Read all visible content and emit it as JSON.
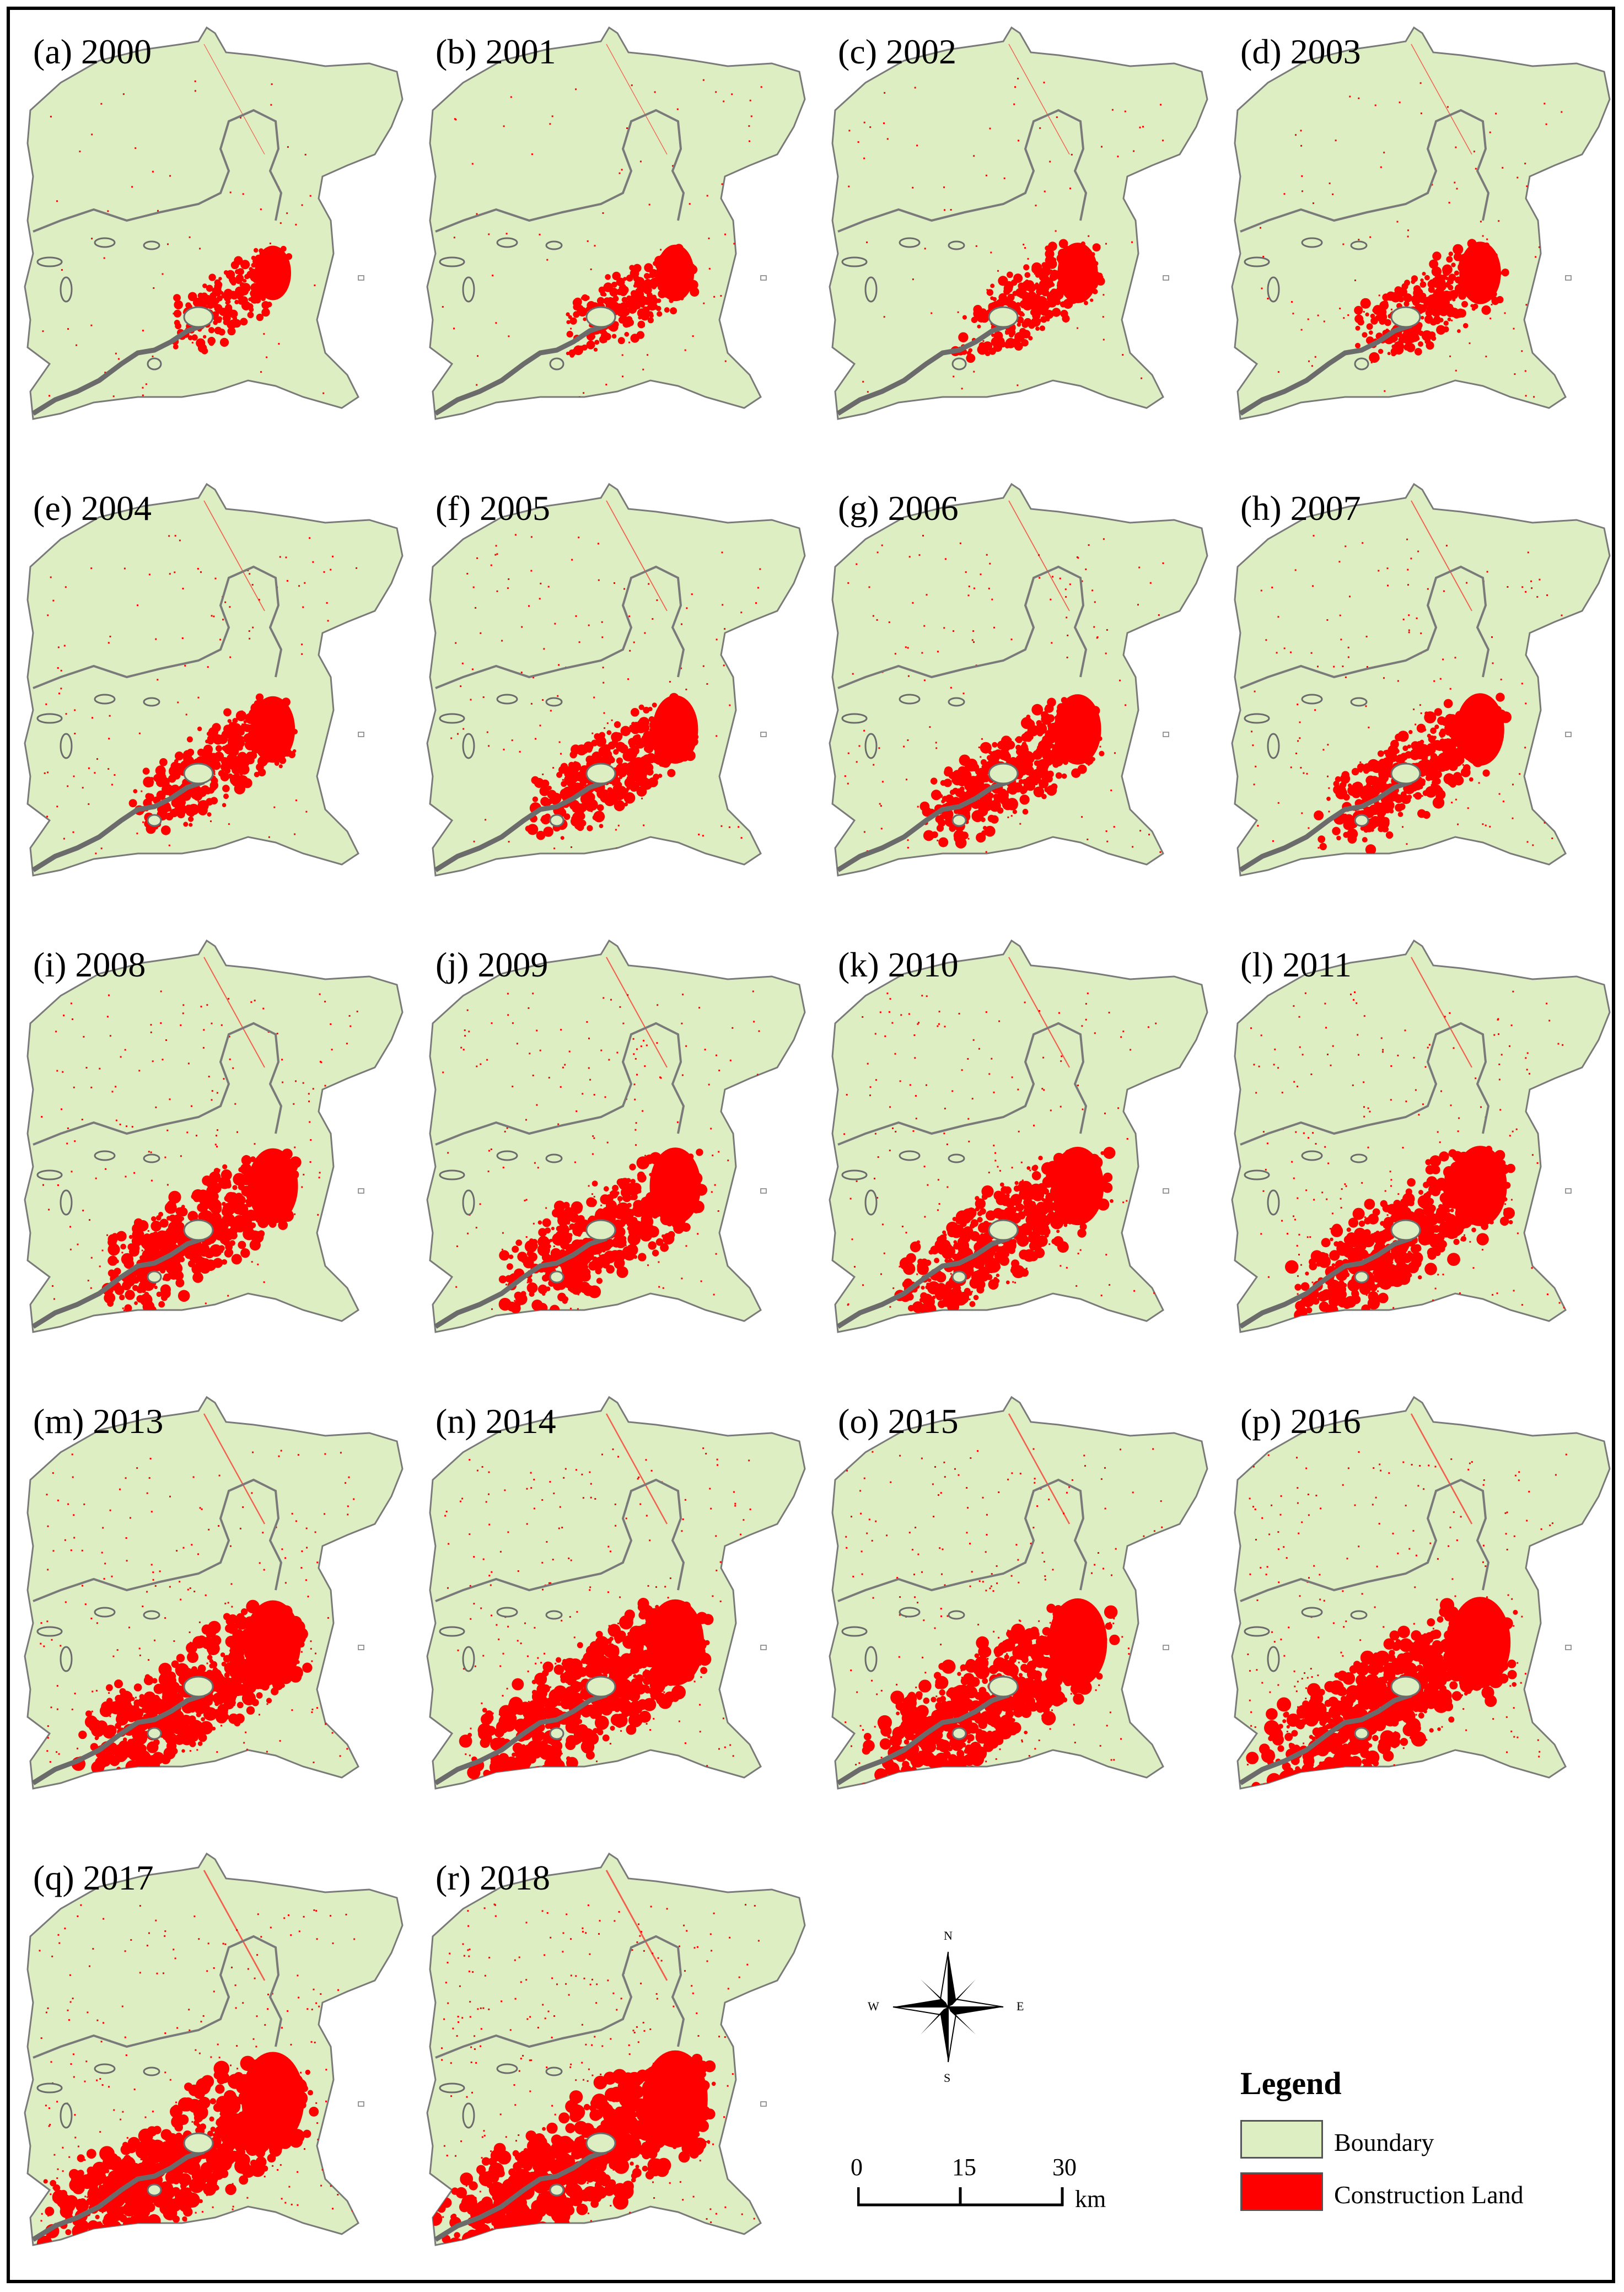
{
  "colors": {
    "region_fill": "#DDEFC2",
    "region_outline": "#7a7a7a",
    "construction": "#FF0000",
    "river_outline": "#6b6b6b"
  },
  "panels": [
    {
      "label": "(a) 2000",
      "density": 0.1
    },
    {
      "label": "(b) 2001",
      "density": 0.14
    },
    {
      "label": "(c) 2002",
      "density": 0.22
    },
    {
      "label": "(d) 2003",
      "density": 0.26
    },
    {
      "label": "(e) 2004",
      "density": 0.34
    },
    {
      "label": "(f) 2005",
      "density": 0.38
    },
    {
      "label": "(g) 2006",
      "density": 0.42
    },
    {
      "label": "(h) 2007",
      "density": 0.46
    },
    {
      "label": "(i) 2008",
      "density": 0.52
    },
    {
      "label": "(j) 2009",
      "density": 0.55
    },
    {
      "label": "(k) 2010",
      "density": 0.58
    },
    {
      "label": "(l) 2011",
      "density": 0.62
    },
    {
      "label": "(m) 2013",
      "density": 0.7
    },
    {
      "label": "(n) 2014",
      "density": 0.74
    },
    {
      "label": "(o) 2015",
      "density": 0.78
    },
    {
      "label": "(p) 2016",
      "density": 0.84
    },
    {
      "label": "(q) 2017",
      "density": 0.9
    },
    {
      "label": "(r) 2018",
      "density": 0.96
    }
  ],
  "compass": {
    "north": "N",
    "south": "S",
    "east": "E",
    "west": "W"
  },
  "scale_bar": {
    "ticks": [
      "0",
      "15",
      "30"
    ],
    "unit": "km"
  },
  "legend": {
    "title": "Legend",
    "items": [
      {
        "label": "Boundary",
        "color": "#DDEFC2"
      },
      {
        "label": "Construction Land",
        "color": "#FF0000"
      }
    ]
  }
}
